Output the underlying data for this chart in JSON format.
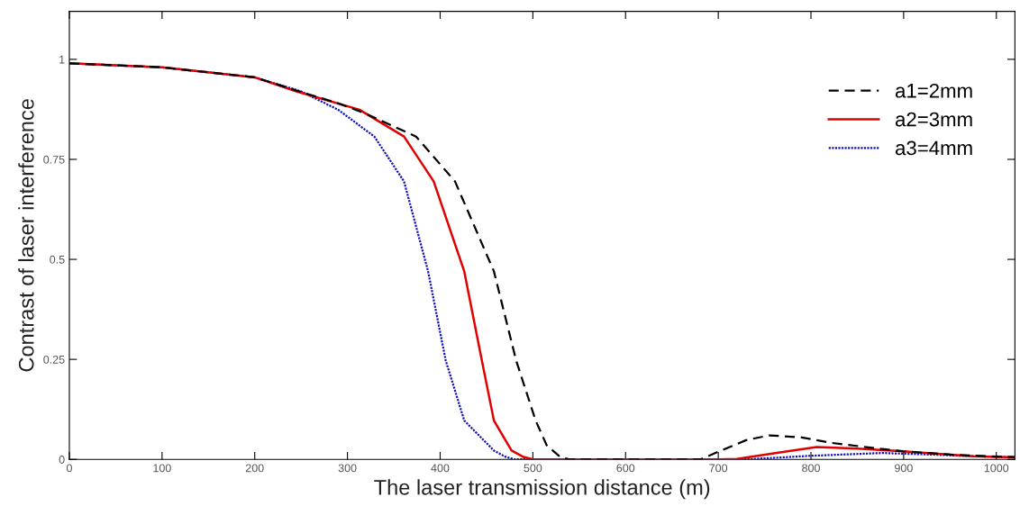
{
  "chart_data": {
    "type": "line",
    "xlabel": "The laser transmission distance (m)",
    "ylabel": "Contrast of laser interference",
    "xlim": [
      0,
      1020
    ],
    "ylim": [
      0,
      1.12
    ],
    "xticks": [
      0,
      100,
      200,
      300,
      400,
      500,
      600,
      700,
      800,
      900,
      1000
    ],
    "yticks": [
      0,
      0.25,
      0.5,
      0.75,
      1
    ],
    "grid": false,
    "legend": "top right",
    "marker": "none",
    "series": [
      {
        "name": "a1=2mm",
        "color": "#000000",
        "line_style": "dashed",
        "x": [
          0,
          100,
          200,
          248,
          290,
          319,
          374,
          416,
          458,
          482,
          503,
          515,
          530,
          540,
          600,
          681,
          700,
          730,
          755,
          790,
          823,
          862,
          900,
          950,
          1000,
          1020
        ],
        "values": [
          0.99,
          0.98,
          0.955,
          0.92,
          0.89,
          0.865,
          0.807,
          0.695,
          0.47,
          0.247,
          0.097,
          0.035,
          0.005,
          0,
          0,
          0,
          0.019,
          0.048,
          0.06,
          0.055,
          0.041,
          0.03,
          0.02,
          0.012,
          0.007,
          0.006
        ]
      },
      {
        "name": "a2=3mm",
        "color": "#e00000",
        "line_style": "solid",
        "x": [
          0,
          100,
          200,
          245,
          313,
          361,
          393,
          426,
          445,
          458,
          477,
          490,
          500,
          600,
          700,
          720,
          760,
          806,
          850,
          900,
          975,
          1020
        ],
        "values": [
          0.99,
          0.98,
          0.955,
          0.92,
          0.874,
          0.807,
          0.695,
          0.47,
          0.247,
          0.097,
          0.022,
          0.006,
          0,
          0,
          0,
          0.001,
          0.015,
          0.031,
          0.027,
          0.02,
          0.008,
          0.005
        ]
      },
      {
        "name": "a3=4mm",
        "color": "#1010c0",
        "line_style": "dotted",
        "x": [
          0,
          100,
          200,
          250,
          290,
          329,
          361,
          387,
          406,
          426,
          458,
          470,
          480,
          600,
          730,
          800,
          877,
          930,
          975,
          1020
        ],
        "values": [
          0.99,
          0.98,
          0.955,
          0.92,
          0.874,
          0.807,
          0.695,
          0.47,
          0.247,
          0.097,
          0.022,
          0.007,
          0,
          0,
          0,
          0.009,
          0.016,
          0.012,
          0.008,
          0.005
        ]
      }
    ]
  }
}
